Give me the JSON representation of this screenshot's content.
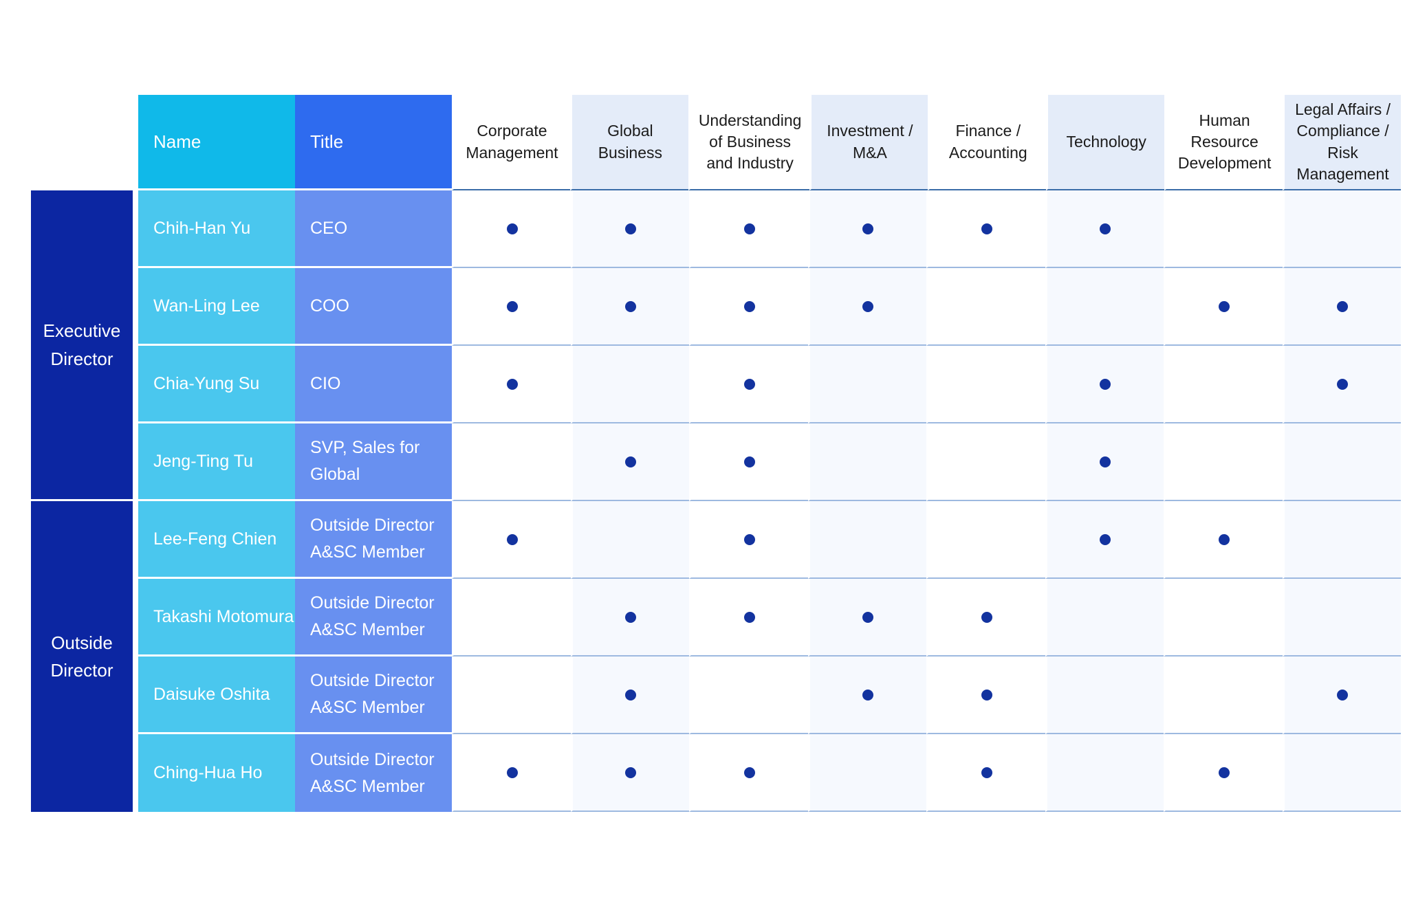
{
  "table": {
    "header": {
      "name": "Name",
      "title": "Title",
      "skills": [
        "Corporate Management",
        "Global Business",
        "Understanding of Business and Industry",
        "Investment / M&A",
        "Finance / Accounting",
        "Technology",
        "Human Resource Development",
        "Legal Affairs / Compliance / Risk Management"
      ]
    },
    "groups": [
      {
        "label": "Executive Director",
        "rows": [
          {
            "name": "Chih-Han Yu",
            "title": "CEO",
            "skills": [
              1,
              1,
              1,
              1,
              1,
              1,
              0,
              0
            ]
          },
          {
            "name": "Wan-Ling Lee",
            "title": "COO",
            "skills": [
              1,
              1,
              1,
              1,
              0,
              0,
              1,
              1
            ]
          },
          {
            "name": "Chia-Yung Su",
            "title": "CIO",
            "skills": [
              1,
              0,
              1,
              0,
              0,
              1,
              0,
              1
            ]
          },
          {
            "name": "Jeng-Ting Tu",
            "title": "SVP, Sales for Global",
            "skills": [
              0,
              1,
              1,
              0,
              0,
              1,
              0,
              0
            ]
          }
        ]
      },
      {
        "label": "Outside Director",
        "rows": [
          {
            "name": "Lee-Feng Chien",
            "title": "Outside Director A&SC Member",
            "skills": [
              1,
              0,
              1,
              0,
              0,
              1,
              1,
              0
            ]
          },
          {
            "name": "Takashi Motomura",
            "title": "Outside Director A&SC Member",
            "skills": [
              0,
              1,
              1,
              1,
              1,
              0,
              0,
              0
            ]
          },
          {
            "name": "Daisuke Oshita",
            "title": "Outside Director A&SC Member",
            "skills": [
              0,
              1,
              0,
              1,
              1,
              0,
              0,
              1
            ]
          },
          {
            "name": "Ching-Hua Ho",
            "title": "Outside Director A&SC Member",
            "skills": [
              1,
              1,
              1,
              0,
              1,
              0,
              1,
              0
            ]
          }
        ]
      }
    ]
  },
  "colors": {
    "name_header_bg": "#10b9e9",
    "title_header_bg": "#2e6bef",
    "name_cell_bg": "#4ac7ee",
    "title_cell_bg": "#6890f0",
    "group_cell_bg": "#0c26a2",
    "dot": "#13339f",
    "striped_header_bg": "#e4ecf9",
    "striped_cell_bg": "#f6f9fe",
    "header_underline": "#3a6ca8",
    "row_divider": "#9db9e0"
  },
  "chart_data": {
    "type": "table",
    "row_groups": [
      "Executive Director",
      "Outside Director"
    ],
    "columns": [
      "Name",
      "Title",
      "Corporate Management",
      "Global Business",
      "Understanding of Business and Industry",
      "Investment / M&A",
      "Finance / Accounting",
      "Technology",
      "Human Resource Development",
      "Legal Affairs / Compliance / Risk Management"
    ],
    "rows": [
      {
        "group": "Executive Director",
        "name": "Chih-Han Yu",
        "title": "CEO",
        "marks": [
          1,
          1,
          1,
          1,
          1,
          1,
          0,
          0
        ]
      },
      {
        "group": "Executive Director",
        "name": "Wan-Ling Lee",
        "title": "COO",
        "marks": [
          1,
          1,
          1,
          1,
          0,
          0,
          1,
          1
        ]
      },
      {
        "group": "Executive Director",
        "name": "Chia-Yung Su",
        "title": "CIO",
        "marks": [
          1,
          0,
          1,
          0,
          0,
          1,
          0,
          1
        ]
      },
      {
        "group": "Executive Director",
        "name": "Jeng-Ting Tu",
        "title": "SVP, Sales for Global",
        "marks": [
          0,
          1,
          1,
          0,
          0,
          1,
          0,
          0
        ]
      },
      {
        "group": "Outside Director",
        "name": "Lee-Feng Chien",
        "title": "Outside Director A&SC Member",
        "marks": [
          1,
          0,
          1,
          0,
          0,
          1,
          1,
          0
        ]
      },
      {
        "group": "Outside Director",
        "name": "Takashi Motomura",
        "title": "Outside Director A&SC Member",
        "marks": [
          0,
          1,
          1,
          1,
          1,
          0,
          0,
          0
        ]
      },
      {
        "group": "Outside Director",
        "name": "Daisuke Oshita",
        "title": "Outside Director A&SC Member",
        "marks": [
          0,
          1,
          0,
          1,
          1,
          0,
          0,
          1
        ]
      },
      {
        "group": "Outside Director",
        "name": "Ching-Hua Ho",
        "title": "Outside Director A&SC Member",
        "marks": [
          1,
          1,
          1,
          0,
          1,
          0,
          1,
          0
        ]
      }
    ],
    "legend": "dot = competency possessed",
    "grid": true
  }
}
